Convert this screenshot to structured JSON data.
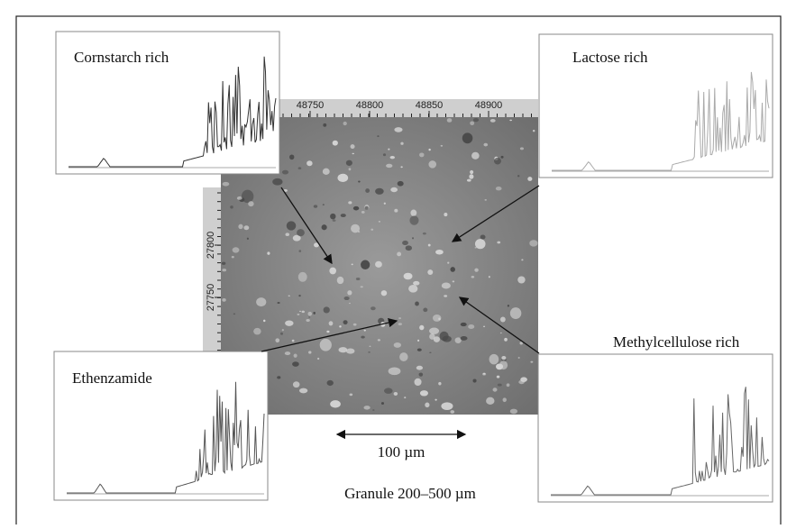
{
  "figure": {
    "panels": [
      {
        "label": "Cornstarch rich"
      },
      {
        "label": "Lactose rich"
      },
      {
        "label": "Ethenzamide"
      },
      {
        "label": "Methylcellulose rich"
      }
    ],
    "image": {
      "x_ticks": [
        48750,
        48800,
        48850,
        48900
      ],
      "y_ticks": [
        27800,
        27750
      ]
    },
    "scale_bar": "100 µm",
    "caption": "Granule 200–500 µm"
  }
}
